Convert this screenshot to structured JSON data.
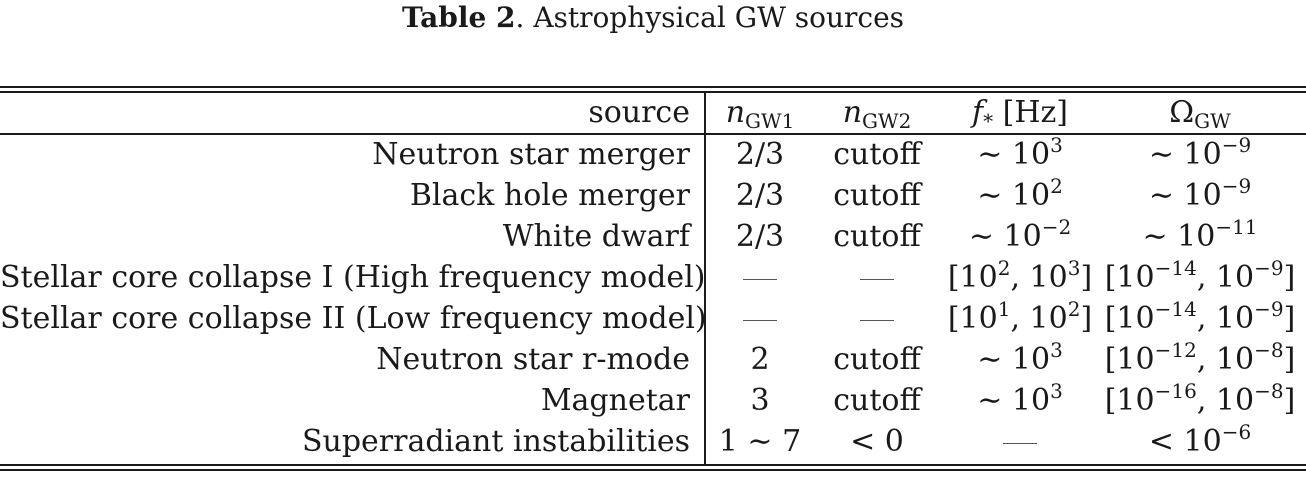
{
  "caption": {
    "label": "Table 2",
    "text": ". Astrophysical GW sources"
  },
  "header": {
    "source": "source",
    "n1_sym": "n",
    "n1_sub": "GW1",
    "n2_sym": "n",
    "n2_sub": "GW2",
    "f_sym": "f",
    "f_sub": "*",
    "f_unit": " [Hz]",
    "om_sym": "Ω",
    "om_sub": "GW"
  },
  "rows": [
    {
      "source": "Neutron star merger",
      "n1": "2/3",
      "n2": "cutoff",
      "f_pre": "∼ 10",
      "f_exp": "3",
      "om_pre": "∼ 10",
      "om_exp": "−9"
    },
    {
      "source": "Black hole merger",
      "n1": "2/3",
      "n2": "cutoff",
      "f_pre": "∼ 10",
      "f_exp": "2",
      "om_pre": "∼ 10",
      "om_exp": "−9"
    },
    {
      "source": "White dwarf",
      "n1": "2/3",
      "n2": "cutoff",
      "f_pre": "∼ 10",
      "f_exp": "−2",
      "om_pre": "∼ 10",
      "om_exp": "−11"
    },
    {
      "source": "Stellar core collapse I (High frequency model)",
      "f_a": "[10",
      "f_ae": "2",
      "f_b": ", 10",
      "f_be": "3",
      "f_c": "]",
      "om_a": "[10",
      "om_ae": "−14",
      "om_b": ", 10",
      "om_be": "−9",
      "om_c": "]"
    },
    {
      "source": "Stellar core collapse II (Low frequency model)",
      "f_a": "[10",
      "f_ae": "1",
      "f_b": ", 10",
      "f_be": "2",
      "f_c": "]",
      "om_a": "[10",
      "om_ae": "−14",
      "om_b": ", 10",
      "om_be": "−9",
      "om_c": "]"
    },
    {
      "source": "Neutron star r-mode",
      "n1": "2",
      "n2": "cutoff",
      "f_pre": "∼ 10",
      "f_exp": "3",
      "om_a": "[10",
      "om_ae": "−12",
      "om_b": ", 10",
      "om_be": "−8",
      "om_c": "]"
    },
    {
      "source": "Magnetar",
      "n1": "3",
      "n2": "cutoff",
      "f_pre": "∼ 10",
      "f_exp": "3",
      "om_a": "[10",
      "om_ae": "−16",
      "om_b": ", 10",
      "om_be": "−8",
      "om_c": "]"
    },
    {
      "source": "Superradiant instabilities",
      "n1": "1 ∼ 7",
      "n2": "< 0",
      "om_pre": "< 10",
      "om_exp": "−6"
    }
  ]
}
